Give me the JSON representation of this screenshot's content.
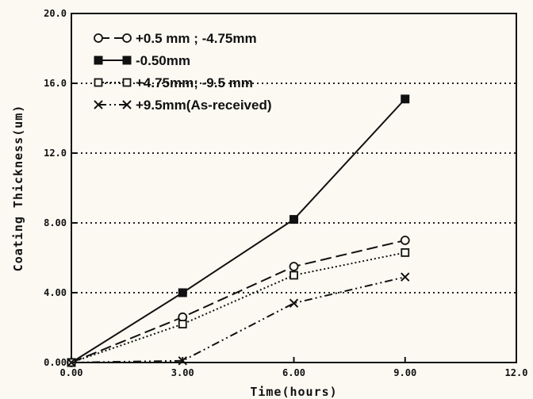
{
  "chart_data": {
    "type": "line",
    "xlabel": "Time(hours)",
    "ylabel": "Coating Thickness(um)",
    "xlim": [
      0,
      12
    ],
    "ylim": [
      0,
      20
    ],
    "x_ticks": [
      {
        "value": 0,
        "label": "0.00"
      },
      {
        "value": 3,
        "label": "3.00"
      },
      {
        "value": 6,
        "label": "6.00"
      },
      {
        "value": 9,
        "label": "9.00"
      },
      {
        "value": 12,
        "label": "12.0"
      }
    ],
    "y_ticks": [
      {
        "value": 0,
        "label": "0.00"
      },
      {
        "value": 4,
        "label": "4.00"
      },
      {
        "value": 8,
        "label": "8.00"
      },
      {
        "value": 12,
        "label": "12.0"
      },
      {
        "value": 16,
        "label": "16.0"
      },
      {
        "value": 20,
        "label": "20.0"
      }
    ],
    "grid": "horizontal dotted",
    "legend_position": "top-left",
    "series": [
      {
        "name": "+0.5 mm ; -4.75mm",
        "marker": "circle",
        "line": "dashed",
        "x": [
          0,
          3,
          6,
          9
        ],
        "y": [
          0,
          2.6,
          5.5,
          7.0
        ]
      },
      {
        "name": "-0.50mm",
        "marker": "filled-square",
        "line": "solid",
        "x": [
          0,
          3,
          6,
          9
        ],
        "y": [
          0,
          4.0,
          8.2,
          15.1
        ]
      },
      {
        "name": "+4.75mm; -9.5 mm",
        "marker": "square",
        "line": "dotted",
        "x": [
          0,
          3,
          6,
          9
        ],
        "y": [
          0,
          2.2,
          5.0,
          6.3
        ]
      },
      {
        "name": "+9.5mm(As-received)",
        "marker": "x",
        "line": "dash-dot-dot",
        "x": [
          0,
          3,
          6,
          9
        ],
        "y": [
          0,
          0.1,
          3.4,
          4.9
        ]
      }
    ]
  }
}
